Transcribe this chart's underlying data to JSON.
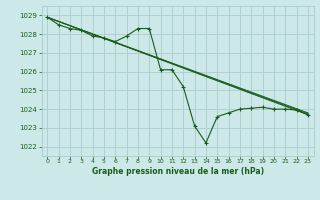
{
  "background_color": "#cce8e8",
  "grid_color": "#aacccc",
  "line_color": "#1a5c1a",
  "title": "Graphe pression niveau de la mer (hPa)",
  "ylim": [
    1021.5,
    1029.5
  ],
  "xlim": [
    -0.5,
    23.5
  ],
  "yticks": [
    1022,
    1023,
    1024,
    1025,
    1026,
    1027,
    1028,
    1029
  ],
  "xticks": [
    0,
    1,
    2,
    3,
    4,
    5,
    6,
    7,
    8,
    9,
    10,
    11,
    12,
    13,
    14,
    15,
    16,
    17,
    18,
    19,
    20,
    21,
    22,
    23
  ],
  "lines": [
    {
      "x": [
        0,
        1,
        2,
        3,
        4,
        5,
        6,
        7,
        8,
        9,
        10,
        11,
        12,
        13,
        14,
        15,
        16,
        17,
        18,
        19,
        20,
        21,
        22,
        23
      ],
      "y": [
        1028.9,
        1028.5,
        1028.3,
        1028.2,
        1027.9,
        1027.8,
        1027.6,
        1027.9,
        1028.3,
        1028.3,
        1026.1,
        1026.1,
        1025.2,
        1023.1,
        1022.2,
        1023.6,
        1023.8,
        1024.0,
        1024.05,
        1024.1,
        1024.0,
        1024.0,
        1023.95,
        1023.7
      ],
      "marker": true
    },
    {
      "x": [
        0,
        23
      ],
      "y": [
        1028.9,
        1023.7
      ],
      "marker": false
    },
    {
      "x": [
        0,
        23
      ],
      "y": [
        1028.9,
        1023.75
      ],
      "marker": false
    },
    {
      "x": [
        0,
        23
      ],
      "y": [
        1028.9,
        1023.8
      ],
      "marker": false
    }
  ]
}
